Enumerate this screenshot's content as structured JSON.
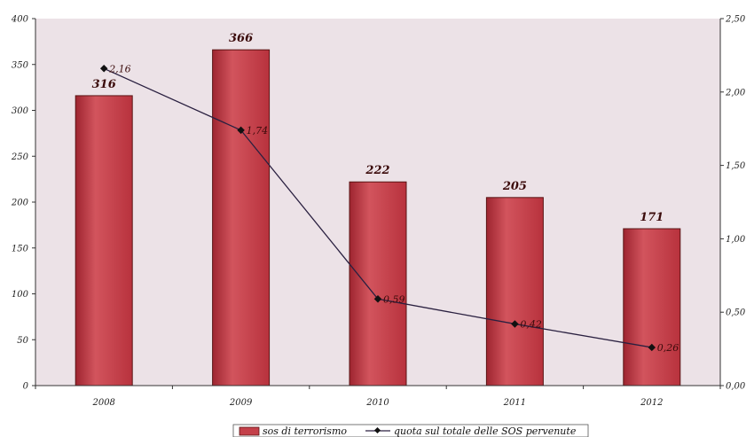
{
  "chart_data": {
    "type": "bar",
    "categories": [
      "2008",
      "2009",
      "2010",
      "2011",
      "2012"
    ],
    "series": [
      {
        "name": "sos di terrorismo",
        "type": "bar",
        "axis": "left",
        "values": [
          316,
          366,
          222,
          205,
          171
        ],
        "labels": [
          "316",
          "366",
          "222",
          "205",
          "171"
        ]
      },
      {
        "name": "quota sul totale delle SOS pervenute",
        "type": "line",
        "axis": "right",
        "values": [
          2.16,
          1.74,
          0.59,
          0.42,
          0.26
        ],
        "labels": [
          "2,16",
          "1,74",
          "0,59",
          "0,42",
          "0,26"
        ]
      }
    ],
    "ylim": [
      0,
      400
    ],
    "y2lim": [
      0,
      2.5
    ],
    "yticks": [
      "0",
      "50",
      "100",
      "150",
      "200",
      "250",
      "300",
      "350",
      "400"
    ],
    "y2ticks": [
      "0,00",
      "0,50",
      "1,00",
      "1,50",
      "2,00",
      "2,50"
    ],
    "legend_position": "bottom",
    "grid": false,
    "colors": {
      "bar_fill": "#c4404a",
      "bar_stroke": "#5a1414",
      "line": "#2a2040",
      "plot_bg": "#e9dde3"
    }
  }
}
